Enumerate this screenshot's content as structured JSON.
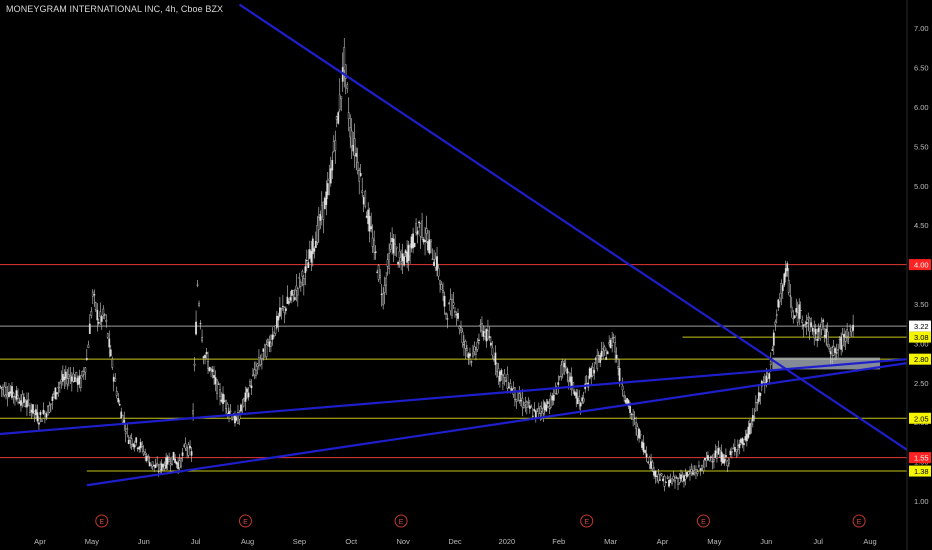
{
  "chart_data": {
    "type": "candlestick",
    "title": "MONEYGRAM INTERNATIONAL INC, 4h, Cboe BZX",
    "ylim": [
      0.85,
      7.3
    ],
    "y_ticks": [
      "7.00",
      "6.50",
      "6.00",
      "5.50",
      "5.00",
      "4.50",
      "4.00",
      "3.50",
      "3.00",
      "2.50",
      "2.00",
      "1.50",
      "1.00"
    ],
    "x_months": [
      "Apr",
      "May",
      "Jun",
      "Jul",
      "Aug",
      "Sep",
      "Oct",
      "Nov",
      "Dec",
      "2020",
      "Feb",
      "Mar",
      "Apr",
      "May",
      "Jun",
      "Jul",
      "Aug"
    ],
    "grid": false,
    "price_path": [
      [
        0,
        2.45
      ],
      [
        5,
        2.35
      ],
      [
        10,
        2.2
      ],
      [
        13,
        2.05
      ],
      [
        16,
        2.15
      ],
      [
        20,
        2.5
      ],
      [
        24,
        2.6
      ],
      [
        27,
        2.5
      ],
      [
        29,
        2.8
      ],
      [
        31,
        3.6
      ],
      [
        33,
        3.3
      ],
      [
        35,
        3.35
      ],
      [
        38,
        2.6
      ],
      [
        40,
        2.2
      ],
      [
        43,
        1.8
      ],
      [
        47,
        1.7
      ],
      [
        50,
        1.5
      ],
      [
        53,
        1.4
      ],
      [
        56,
        1.5
      ],
      [
        58,
        1.55
      ],
      [
        60,
        1.45
      ],
      [
        62,
        1.7
      ],
      [
        64,
        1.6
      ],
      [
        66,
        3.75
      ],
      [
        68,
        2.9
      ],
      [
        70,
        2.7
      ],
      [
        73,
        2.4
      ],
      [
        76,
        2.2
      ],
      [
        79,
        2.0
      ],
      [
        82,
        2.3
      ],
      [
        86,
        2.7
      ],
      [
        90,
        3.0
      ],
      [
        94,
        3.4
      ],
      [
        98,
        3.6
      ],
      [
        102,
        3.9
      ],
      [
        106,
        4.4
      ],
      [
        110,
        5.0
      ],
      [
        112,
        5.6
      ],
      [
        114,
        6.2
      ],
      [
        115,
        6.6
      ],
      [
        117,
        5.7
      ],
      [
        119,
        5.4
      ],
      [
        122,
        4.8
      ],
      [
        125,
        4.2
      ],
      [
        128,
        3.6
      ],
      [
        131,
        4.3
      ],
      [
        134,
        4.0
      ],
      [
        137,
        4.2
      ],
      [
        140,
        4.5
      ],
      [
        143,
        4.3
      ],
      [
        146,
        4.0
      ],
      [
        149,
        3.4
      ],
      [
        152,
        3.5
      ],
      [
        155,
        3.0
      ],
      [
        158,
        2.8
      ],
      [
        161,
        3.2
      ],
      [
        164,
        3.0
      ],
      [
        167,
        2.6
      ],
      [
        170,
        2.5
      ],
      [
        173,
        2.3
      ],
      [
        176,
        2.2
      ],
      [
        179,
        2.1
      ],
      [
        182,
        2.2
      ],
      [
        185,
        2.3
      ],
      [
        188,
        2.7
      ],
      [
        191,
        2.5
      ],
      [
        194,
        2.2
      ],
      [
        197,
        2.6
      ],
      [
        200,
        2.8
      ],
      [
        203,
        2.9
      ],
      [
        205,
        3.1
      ],
      [
        207,
        2.6
      ],
      [
        210,
        2.2
      ],
      [
        213,
        1.9
      ],
      [
        216,
        1.6
      ],
      [
        219,
        1.35
      ],
      [
        222,
        1.25
      ],
      [
        225,
        1.25
      ],
      [
        228,
        1.3
      ],
      [
        231,
        1.35
      ],
      [
        234,
        1.4
      ],
      [
        237,
        1.55
      ],
      [
        240,
        1.6
      ],
      [
        243,
        1.5
      ],
      [
        246,
        1.7
      ],
      [
        249,
        1.75
      ],
      [
        252,
        2.1
      ],
      [
        255,
        2.5
      ],
      [
        257,
        2.6
      ],
      [
        259,
        3.2
      ],
      [
        261,
        3.7
      ],
      [
        263,
        3.9
      ],
      [
        265,
        3.3
      ],
      [
        267,
        3.4
      ],
      [
        269,
        3.3
      ],
      [
        271,
        3.2
      ],
      [
        273,
        3.1
      ],
      [
        275,
        3.2
      ],
      [
        277,
        3.0
      ],
      [
        279,
        2.85
      ],
      [
        281,
        3.0
      ],
      [
        283,
        3.15
      ],
      [
        285,
        3.22
      ]
    ],
    "horizontal_levels": [
      {
        "value": 4.0,
        "label": "4.00",
        "color": "#e53935",
        "badge_bg": "#ff2222",
        "badge_fg": "#ffffff",
        "line_start": 0
      },
      {
        "value": 3.22,
        "label": "3.22",
        "color": "#9e9e9e",
        "badge_bg": "#ffffff",
        "badge_fg": "#000000",
        "line_start": 0
      },
      {
        "value": 3.08,
        "label": "3.08",
        "color": "#c6c61a",
        "badge_bg": "#f5f500",
        "badge_fg": "#000000",
        "line_start": 228
      },
      {
        "value": 2.8,
        "label": "2.80",
        "color": "#c6c61a",
        "badge_bg": "#f5f500",
        "badge_fg": "#000000",
        "line_start": 0
      },
      {
        "value": 2.05,
        "label": "2.05",
        "color": "#c6c61a",
        "badge_bg": "#f5f500",
        "badge_fg": "#000000",
        "line_start": 0
      },
      {
        "value": 1.55,
        "label": "1.55",
        "color": "#e53935",
        "badge_bg": "#ff2222",
        "badge_fg": "#ffffff",
        "line_start": 0
      },
      {
        "value": 1.38,
        "label": "1.38",
        "color": "#c6c61a",
        "badge_bg": "#f5f500",
        "badge_fg": "#000000",
        "line_start": 29
      }
    ],
    "trend_lines": [
      {
        "from": [
          80,
          7.3
        ],
        "to": [
          303,
          1.65
        ],
        "color": "#1e1ecc"
      },
      {
        "from": [
          0,
          1.85
        ],
        "to": [
          303,
          2.8
        ],
        "color": "#1e1ecc"
      },
      {
        "from": [
          29,
          1.2
        ],
        "to": [
          303,
          2.75
        ],
        "color": "#1e1ecc"
      }
    ],
    "zone": {
      "x_from": 258,
      "x_to": 294,
      "y_from": 2.67,
      "y_to": 2.82,
      "color": "#b0b8c8"
    },
    "earnings_markers": {
      "label": "E",
      "x": [
        34,
        82,
        134,
        196,
        235,
        287
      ]
    }
  }
}
